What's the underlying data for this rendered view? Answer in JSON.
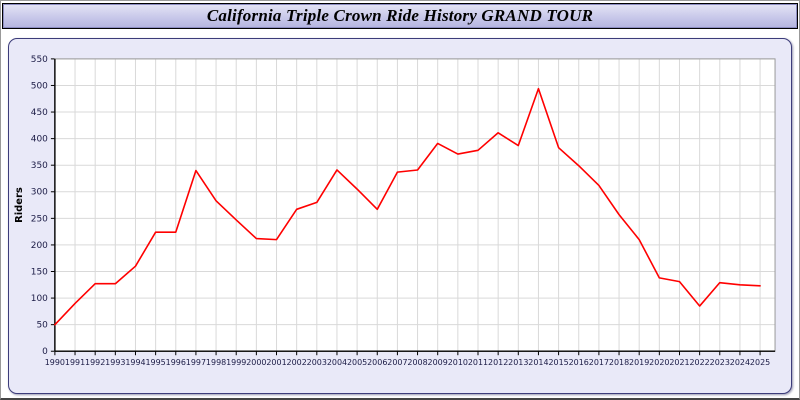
{
  "window": {
    "title": "California Triple Crown Ride History GRAND TOUR"
  },
  "colors": {
    "line": "#ff0000",
    "titlebar_bg": "#c9c9ea",
    "panel_bg": "#e9e9f8",
    "plot_bg": "#ffffff",
    "grid": "#d9d9d9",
    "axis": "#000000",
    "tick_label": "#1c1c46"
  },
  "chart_data": {
    "type": "line",
    "title": "California Triple Crown Ride History GRAND TOUR",
    "xlabel": "",
    "ylabel": "Riders",
    "ylim": [
      0,
      550
    ],
    "ytick_step": 50,
    "grid": true,
    "legend": false,
    "series_name": "Riders",
    "x": [
      1990,
      1991,
      1992,
      1993,
      1994,
      1995,
      1996,
      1997,
      1998,
      1999,
      2000,
      2001,
      2002,
      2003,
      2004,
      2005,
      2006,
      2007,
      2008,
      2009,
      2010,
      2011,
      2012,
      2013,
      2014,
      2015,
      2016,
      2017,
      2018,
      2019,
      2020,
      2021,
      2022,
      2023,
      2024,
      2025
    ],
    "values": [
      50,
      90,
      127,
      127,
      160,
      224,
      224,
      340,
      283,
      247,
      212,
      210,
      267,
      280,
      341,
      305,
      267,
      337,
      341,
      391,
      371,
      378,
      411,
      387,
      494,
      383,
      349,
      312,
      257,
      210,
      138,
      131,
      85,
      129,
      125,
      123
    ]
  }
}
